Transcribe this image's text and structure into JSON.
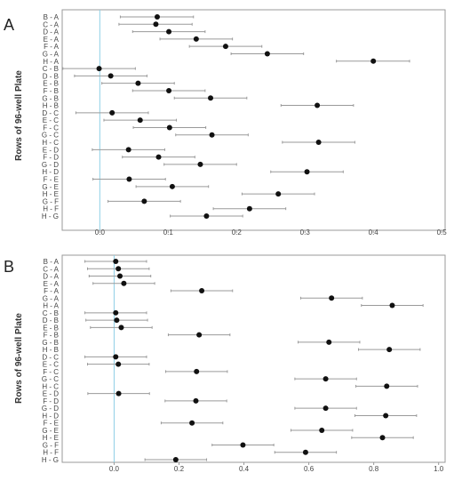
{
  "panels": [
    {
      "letter": "A",
      "ylabel": "Rows of 96-well Plate",
      "categories": [
        "B - A",
        "C - A",
        "D - A",
        "E - A",
        "F - A",
        "G - A",
        "H - A",
        "C - B",
        "D - B",
        "E - B",
        "F - B",
        "G - B",
        "H - B",
        "D - C",
        "E - C",
        "F - C",
        "G - C",
        "H - C",
        "E - D",
        "F - D",
        "G - D",
        "H - D",
        "F - E",
        "G - E",
        "H - E",
        "G - F",
        "H - F",
        "H - G"
      ],
      "xticks": [
        "0.0",
        "0.1",
        "0.2",
        "0.3",
        "0.4",
        "0.5"
      ]
    },
    {
      "letter": "B",
      "ylabel": "Rows of 96-well Plate",
      "categories": [
        "B - A",
        "C - A",
        "D - A",
        "E - A",
        "F - A",
        "G - A",
        "H - A",
        "C - B",
        "D - B",
        "E - B",
        "F - B",
        "G - B",
        "H - B",
        "D - C",
        "E - C",
        "F - C",
        "G - C",
        "H - C",
        "E - D",
        "F - D",
        "G - D",
        "H - D",
        "F - E",
        "G - E",
        "H - E",
        "G - F",
        "H - F",
        "H - G"
      ],
      "xticks": [
        "0.0",
        "0.2",
        "0.4",
        "0.6",
        "0.8",
        "1.0"
      ]
    }
  ],
  "chart_data": [
    {
      "type": "scatter",
      "title": "",
      "ylabel": "Rows of 96-well Plate",
      "xlabel": "",
      "xlim": [
        -0.055,
        0.505
      ],
      "reference_line_x": 0,
      "grid": false,
      "categories": [
        "B - A",
        "C - A",
        "D - A",
        "E - A",
        "F - A",
        "G - A",
        "H - A",
        "C - B",
        "D - B",
        "E - B",
        "F - B",
        "G - B",
        "H - B",
        "D - C",
        "E - C",
        "F - C",
        "G - C",
        "H - C",
        "E - D",
        "F - D",
        "G - D",
        "H - D",
        "F - E",
        "G - E",
        "H - E",
        "G - F",
        "H - F",
        "H - G"
      ],
      "estimate": [
        0.084,
        0.082,
        0.101,
        0.141,
        0.184,
        0.245,
        0.4,
        -0.001,
        0.016,
        0.056,
        0.101,
        0.162,
        0.318,
        0.018,
        0.059,
        0.102,
        0.164,
        0.32,
        0.042,
        0.086,
        0.147,
        0.303,
        0.043,
        0.106,
        0.261,
        0.065,
        0.219,
        0.156
      ],
      "lower": [
        0.03,
        0.028,
        0.048,
        0.088,
        0.131,
        0.192,
        0.346,
        -0.054,
        -0.037,
        0.003,
        0.048,
        0.109,
        0.265,
        -0.035,
        0.006,
        0.049,
        0.111,
        0.267,
        -0.011,
        0.033,
        0.094,
        0.25,
        -0.01,
        0.053,
        0.208,
        0.012,
        0.166,
        0.103
      ],
      "upper": [
        0.137,
        0.135,
        0.154,
        0.194,
        0.237,
        0.298,
        0.453,
        0.052,
        0.069,
        0.109,
        0.154,
        0.215,
        0.371,
        0.071,
        0.112,
        0.155,
        0.217,
        0.373,
        0.095,
        0.139,
        0.2,
        0.356,
        0.096,
        0.159,
        0.314,
        0.118,
        0.272,
        0.209
      ]
    },
    {
      "type": "scatter",
      "title": "",
      "ylabel": "Rows of 96-well Plate",
      "xlabel": "",
      "xlim": [
        -0.16,
        1.02
      ],
      "reference_line_x": 0,
      "grid": false,
      "categories": [
        "B - A",
        "C - A",
        "D - A",
        "E - A",
        "F - A",
        "G - A",
        "H - A",
        "C - B",
        "D - B",
        "E - B",
        "F - B",
        "G - B",
        "H - B",
        "D - C",
        "E - C",
        "F - C",
        "G - C",
        "H - C",
        "E - D",
        "F - D",
        "G - D",
        "H - D",
        "F - E",
        "G - E",
        "H - E",
        "G - F",
        "H - F",
        "H - G"
      ],
      "estimate": [
        0.005,
        0.013,
        0.018,
        0.03,
        0.27,
        0.67,
        0.857,
        0.005,
        0.008,
        0.022,
        0.262,
        0.662,
        0.848,
        0.005,
        0.013,
        0.254,
        0.652,
        0.84,
        0.014,
        0.252,
        0.652,
        0.837,
        0.24,
        0.64,
        0.827,
        0.397,
        0.59,
        0.19
      ],
      "lower": [
        -0.09,
        -0.082,
        -0.077,
        -0.065,
        0.175,
        0.575,
        0.762,
        -0.09,
        -0.087,
        -0.073,
        0.167,
        0.567,
        0.753,
        -0.09,
        -0.082,
        0.159,
        0.557,
        0.745,
        -0.081,
        0.157,
        0.557,
        0.742,
        0.145,
        0.545,
        0.732,
        0.302,
        0.495,
        0.095
      ],
      "upper": [
        0.1,
        0.108,
        0.113,
        0.125,
        0.365,
        0.765,
        0.952,
        0.1,
        0.103,
        0.117,
        0.357,
        0.757,
        0.943,
        0.1,
        0.108,
        0.349,
        0.747,
        0.935,
        0.109,
        0.347,
        0.747,
        0.932,
        0.335,
        0.735,
        0.922,
        0.492,
        0.685,
        0.285
      ]
    }
  ]
}
